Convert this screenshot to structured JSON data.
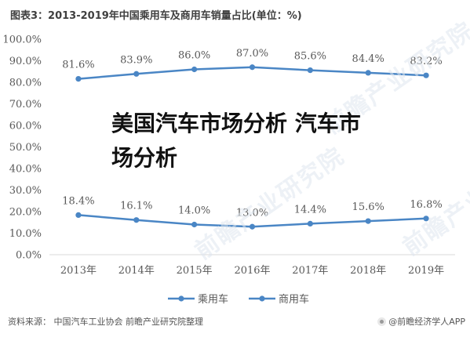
{
  "title": "图表3：2013-2019年中国乘用车及商用车销量占比(单位：%)",
  "overlay_text": "美国汽车市场分析 汽车市场分析",
  "watermark": "前瞻产业研究院",
  "footer": {
    "source": "资料来源：  中国汽车工业协会 前瞻产业研究院整理",
    "brand": "@前瞻经济学人APP"
  },
  "colors": {
    "series": "#4a86c5",
    "axis": "#d9d9d9",
    "text": "#595959"
  },
  "chart_data": {
    "type": "line",
    "title": "图表3：2013-2019年中国乘用车及商用车销量占比(单位：%)",
    "categories": [
      "2013年",
      "2014年",
      "2015年",
      "2016年",
      "2017年",
      "2018年",
      "2019年"
    ],
    "series": [
      {
        "name": "乘用车",
        "values": [
          81.6,
          83.9,
          86.0,
          87.0,
          85.6,
          84.4,
          83.2
        ]
      },
      {
        "name": "商用车",
        "values": [
          18.4,
          16.1,
          14.0,
          13.0,
          14.4,
          15.6,
          16.8
        ]
      }
    ],
    "data_labels": [
      [
        "81.6%",
        "83.9%",
        "86.0%",
        "87.0%",
        "85.6%",
        "84.4%",
        "83.2%"
      ],
      [
        "18.4%",
        "16.1%",
        "14.0%",
        "13.0%",
        "14.4%",
        "15.6%",
        "16.8%"
      ]
    ],
    "yticks": [
      "0.0%",
      "10.0%",
      "20.0%",
      "30.0%",
      "40.0%",
      "50.0%",
      "60.0%",
      "70.0%",
      "80.0%",
      "90.0%",
      "100.0%"
    ],
    "ylim": [
      0,
      100
    ],
    "grid": false,
    "legend": "bottom"
  }
}
